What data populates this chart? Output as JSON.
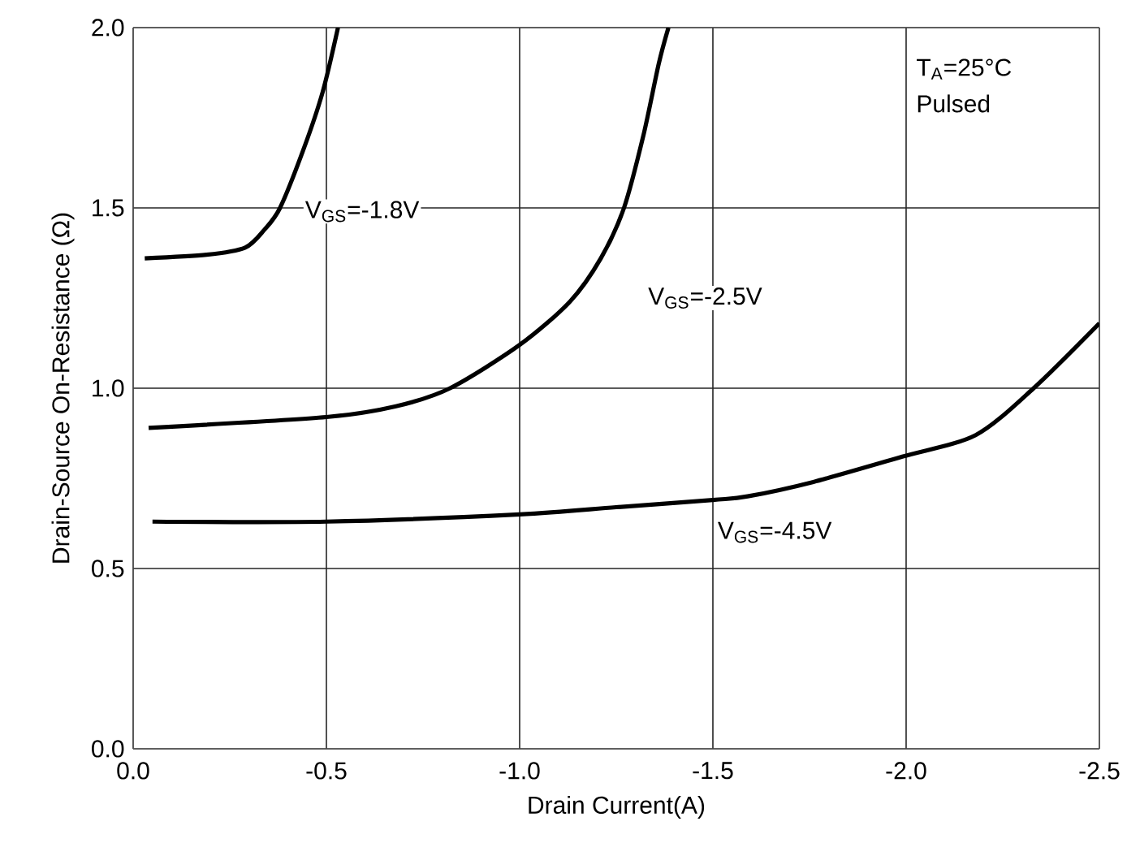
{
  "chart_data": {
    "type": "line",
    "xlabel": "Drain Current(A)",
    "ylabel": "Drain-Source On-Resistance (Ω)",
    "xlim": [
      0,
      -2.5
    ],
    "ylim": [
      0,
      2.0
    ],
    "xticks": [
      {
        "value": 0,
        "label": "0.0"
      },
      {
        "value": -0.5,
        "label": "-0.5"
      },
      {
        "value": -1.0,
        "label": "-1.0"
      },
      {
        "value": -1.5,
        "label": "-1.5"
      },
      {
        "value": -2.0,
        "label": "-2.0"
      },
      {
        "value": -2.5,
        "label": "-2.5"
      }
    ],
    "yticks": [
      {
        "value": 0,
        "label": "0.0"
      },
      {
        "value": 0.5,
        "label": "0.5"
      },
      {
        "value": 1.0,
        "label": "1.0"
      },
      {
        "value": 1.5,
        "label": "1.5"
      },
      {
        "value": 2.0,
        "label": "2.0"
      }
    ],
    "grid": true,
    "legend": false,
    "marker": "none",
    "line_style": "solid",
    "series": [
      {
        "name": "V$_{GS}$=-1.8V",
        "color": "#000000",
        "x": [
          -0.03,
          -0.19,
          -0.29,
          -0.34,
          -0.38,
          -0.44,
          -0.49,
          -0.53
        ],
        "values": [
          1.36,
          1.37,
          1.39,
          1.44,
          1.5,
          1.66,
          1.82,
          2.0
        ]
      },
      {
        "name": "V$_{GS}$=-2.5V",
        "color": "#000000",
        "x": [
          -0.04,
          -0.5,
          -0.68,
          -0.82,
          -1.0,
          -1.13,
          -1.21,
          -1.27,
          -1.32,
          -1.36,
          -1.385
        ],
        "values": [
          0.89,
          0.92,
          0.95,
          1.0,
          1.12,
          1.24,
          1.36,
          1.5,
          1.7,
          1.9,
          2.0
        ]
      },
      {
        "name": "V$_{GS}$=-4.5V",
        "color": "#000000",
        "x": [
          -0.05,
          -0.5,
          -1.0,
          -1.25,
          -1.5,
          -1.59,
          -1.76,
          -1.99,
          -2.18,
          -2.33,
          -2.5
        ],
        "values": [
          0.63,
          0.63,
          0.65,
          0.67,
          0.69,
          0.7,
          0.74,
          0.81,
          0.87,
          1.0,
          1.18
        ]
      }
    ],
    "annotations": [
      "T$_{A}$=25°C",
      "Pulsed"
    ]
  }
}
